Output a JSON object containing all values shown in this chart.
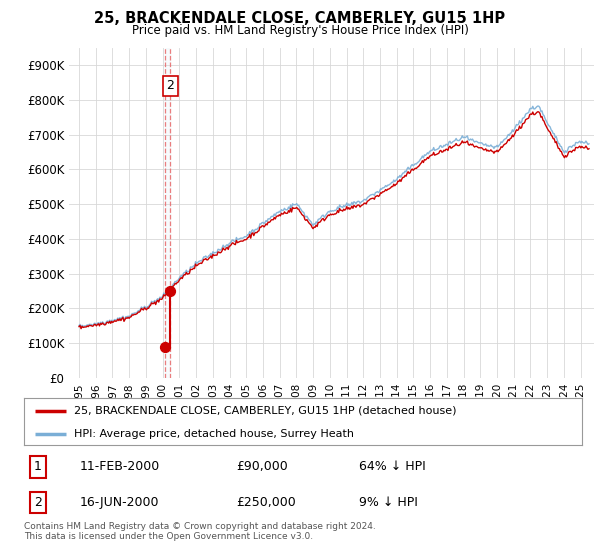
{
  "title": "25, BRACKENDALE CLOSE, CAMBERLEY, GU15 1HP",
  "subtitle": "Price paid vs. HM Land Registry's House Price Index (HPI)",
  "legend_label_red": "25, BRACKENDALE CLOSE, CAMBERLEY, GU15 1HP (detached house)",
  "legend_label_blue": "HPI: Average price, detached house, Surrey Heath",
  "transaction1_label": "1",
  "transaction1_date": "11-FEB-2000",
  "transaction1_price": "£90,000",
  "transaction1_hpi": "64% ↓ HPI",
  "transaction2_label": "2",
  "transaction2_date": "16-JUN-2000",
  "transaction2_price": "£250,000",
  "transaction2_hpi": "9% ↓ HPI",
  "footer": "Contains HM Land Registry data © Crown copyright and database right 2024.\nThis data is licensed under the Open Government Licence v3.0.",
  "red_color": "#cc0000",
  "blue_color": "#7aaed6",
  "dashed_color": "#e87070",
  "bg_color": "#ffffff",
  "grid_color": "#d8d8d8",
  "ylim_min": 0,
  "ylim_max": 950000,
  "yticks": [
    0,
    100000,
    200000,
    300000,
    400000,
    500000,
    600000,
    700000,
    800000,
    900000
  ],
  "t1_year": 2000.115,
  "t2_year": 2000.462,
  "t1_price": 90000,
  "t2_price": 250000,
  "hpi_scale": 0.362,
  "noise_seed": 42
}
